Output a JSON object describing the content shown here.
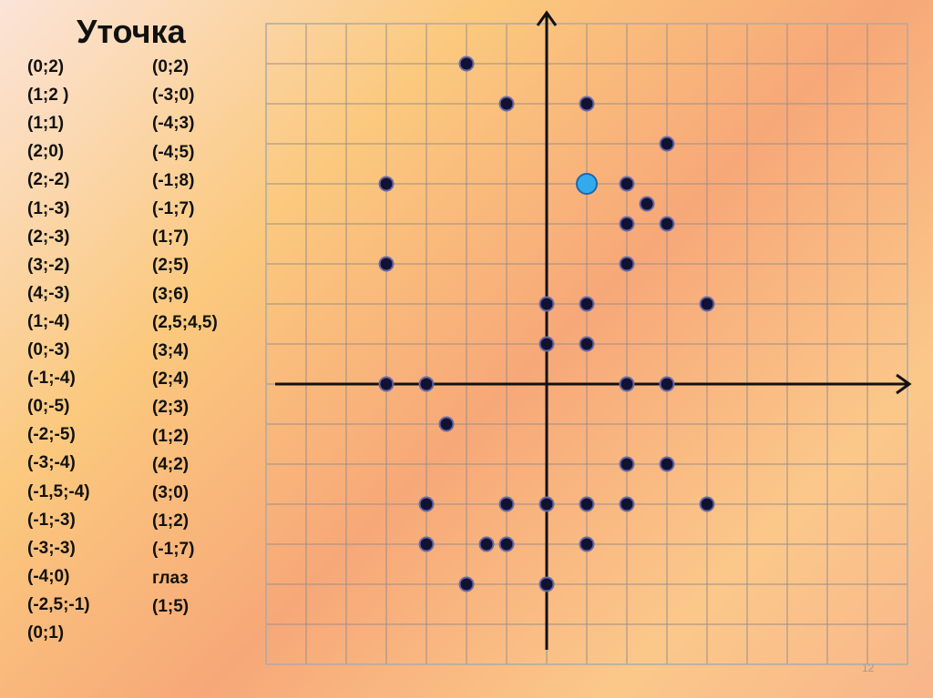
{
  "title": "Уточка",
  "column1": [
    "(0;2)",
    "(1;2 )",
    "(1;1)",
    "(2;0)",
    "(2;-2)",
    "(1;-3)",
    "(2;-3)",
    "(3;-2)",
    "(4;-3)",
    "(1;-4)",
    "(0;-3)",
    "(-1;-4)",
    "(0;-5)",
    "(-2;-5)",
    "(-3;-4)",
    "(-1,5;-4)",
    "(-1;-3)",
    "(-3;-3)",
    "(-4;0)",
    "(-2,5;-1)",
    "(0;1)"
  ],
  "column2": [
    "(0;2)",
    "(-3;0)",
    "(-4;3)",
    "(-4;5)",
    "(-1;8)",
    "(-1;7)",
    "(1;7)",
    "(2;5)",
    "(3;6)",
    "(2,5;4,5)",
    "(3;4)",
    "(2;4)",
    "(2;3)",
    "(1;2)",
    "(4;2)",
    "(3;0)",
    "(1;2)",
    "(-1;7)",
    "глаз",
    "(1;5)"
  ],
  "page_number": "12",
  "chart_data": {
    "type": "scatter",
    "xlim": [
      -7,
      9
    ],
    "ylim": [
      -7,
      9
    ],
    "grid": true,
    "series": [
      {
        "color": "#111133",
        "x": [
          -2,
          -1,
          1,
          3,
          -4,
          2,
          2.5,
          2,
          3,
          -4,
          2,
          0,
          1,
          4,
          0,
          1,
          -4,
          -3,
          2,
          3,
          -2.5,
          2,
          3,
          -3,
          -1,
          0,
          1,
          2,
          4,
          -3,
          -1.5,
          -1,
          1,
          -2,
          0
        ],
        "y": [
          8,
          7,
          7,
          6,
          5,
          5,
          4.5,
          4,
          4,
          3,
          3,
          2,
          2,
          2,
          1,
          1,
          0,
          0,
          0,
          0,
          -1,
          -2,
          -2,
          -3,
          -3,
          -3,
          -3,
          -3,
          -3,
          -4,
          -4,
          -4,
          -4,
          -5,
          -5
        ]
      },
      {
        "color": "#33aaee",
        "x": [
          1
        ],
        "y": [
          5
        ]
      }
    ]
  }
}
